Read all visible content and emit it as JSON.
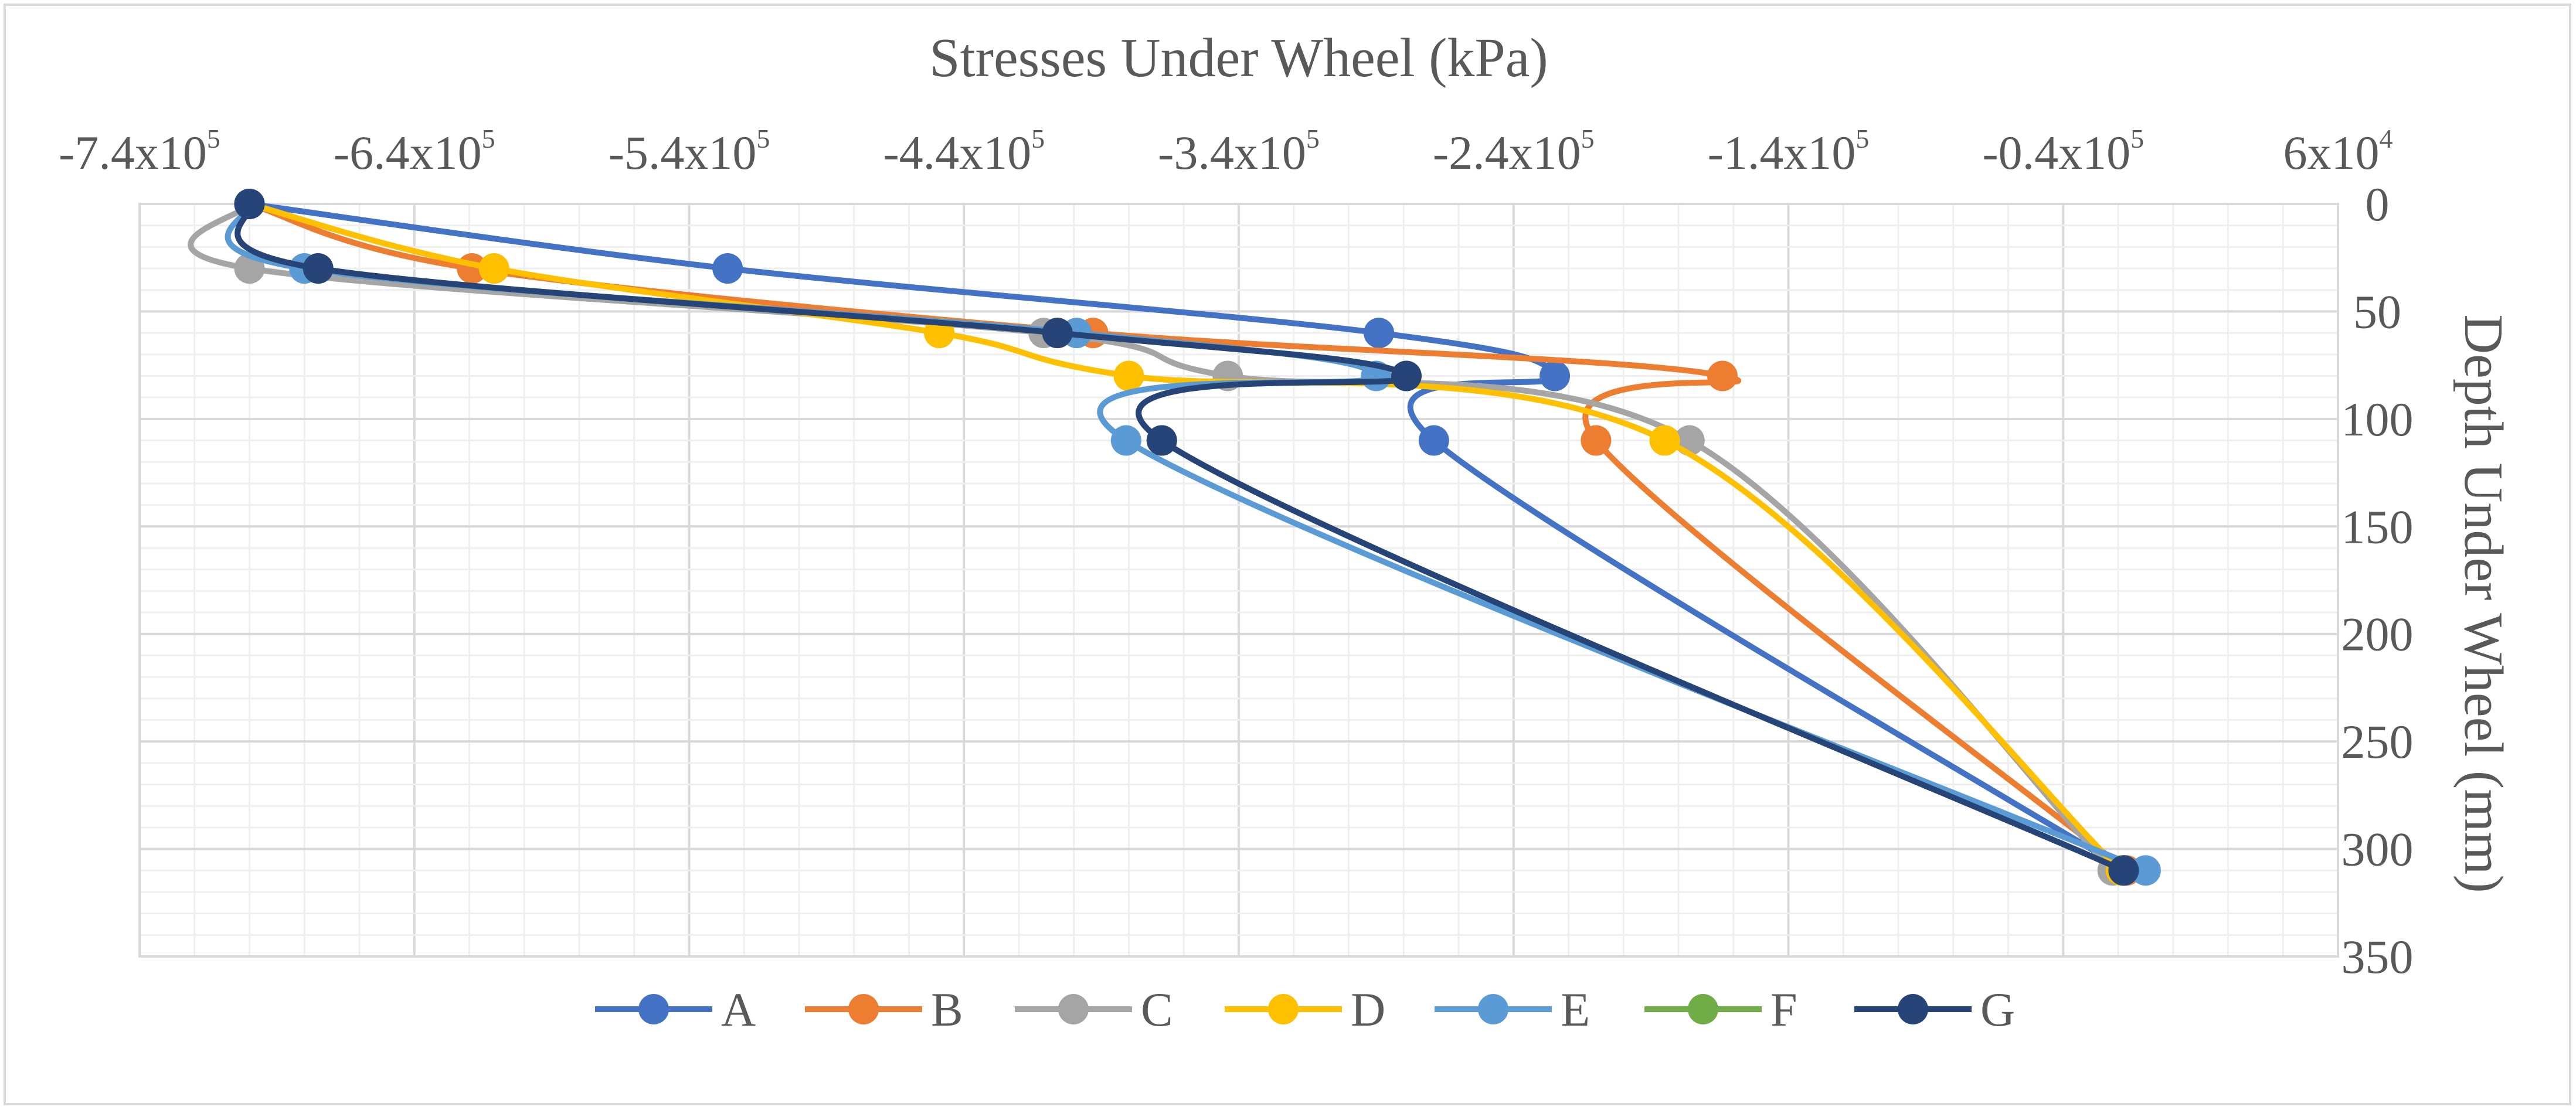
{
  "chart_data": {
    "type": "line",
    "title": "Stresses Under Wheel (kPa)",
    "xlabel": "Stresses Under Wheel (kPa)",
    "ylabel": "Depth Under Wheel (mm)",
    "xlim": [
      -740000,
      60000
    ],
    "ylim": [
      0,
      350
    ],
    "y_inverted": true,
    "x_axis_position": "top",
    "y_axis_position": "right",
    "x_ticks": [
      {
        "value": -740000,
        "base": "-7.4x10",
        "exp": "5"
      },
      {
        "value": -640000,
        "base": "-6.4x10",
        "exp": "5"
      },
      {
        "value": -540000,
        "base": "-5.4x10",
        "exp": "5"
      },
      {
        "value": -440000,
        "base": "-4.4x10",
        "exp": "5"
      },
      {
        "value": -340000,
        "base": "-3.4x10",
        "exp": "5"
      },
      {
        "value": -240000,
        "base": "-2.4x10",
        "exp": "5"
      },
      {
        "value": -140000,
        "base": "-1.4x10",
        "exp": "5"
      },
      {
        "value": -40000,
        "base": "-0.4x10",
        "exp": "5"
      },
      {
        "value": 60000,
        "base": "6x10",
        "exp": "4"
      }
    ],
    "y_ticks": [
      "0",
      "50",
      "100",
      "150",
      "200",
      "250",
      "300",
      "350"
    ],
    "y_tick_values": [
      0,
      50,
      100,
      150,
      200,
      250,
      300,
      350
    ],
    "grid": true,
    "legend_position": "bottom",
    "series": [
      {
        "name": "A",
        "color": "#4472C4",
        "points": [
          [
            -700000,
            0
          ],
          [
            -526000,
            30
          ],
          [
            -289000,
            60
          ],
          [
            -225000,
            80
          ],
          [
            -269000,
            110
          ],
          [
            -17000,
            310
          ]
        ]
      },
      {
        "name": "B",
        "color": "#ED7D31",
        "points": [
          [
            -700000,
            0
          ],
          [
            -619000,
            30
          ],
          [
            -393000,
            60
          ],
          [
            -164000,
            80
          ],
          [
            -210000,
            110
          ],
          [
            -17000,
            310
          ]
        ]
      },
      {
        "name": "C",
        "color": "#A5A5A5",
        "points": [
          [
            -700000,
            0
          ],
          [
            -700000,
            30
          ],
          [
            -411000,
            60
          ],
          [
            -344000,
            80
          ],
          [
            -176000,
            110
          ],
          [
            -22000,
            310
          ]
        ]
      },
      {
        "name": "D",
        "color": "#FFC000",
        "points": [
          [
            -700000,
            0
          ],
          [
            -611000,
            30
          ],
          [
            -449000,
            60
          ],
          [
            -380000,
            80
          ],
          [
            -185000,
            110
          ],
          [
            -19000,
            310
          ]
        ]
      },
      {
        "name": "E",
        "color": "#5B9BD5",
        "points": [
          [
            -700000,
            0
          ],
          [
            -680000,
            30
          ],
          [
            -399000,
            60
          ],
          [
            -290000,
            80
          ],
          [
            -381000,
            110
          ],
          [
            -10000,
            310
          ]
        ]
      },
      {
        "name": "F",
        "color": "#70AD47",
        "points": [
          [
            -700000,
            0
          ],
          [
            -675000,
            30
          ],
          [
            -406000,
            60
          ],
          [
            -279000,
            80
          ],
          [
            -368000,
            110
          ],
          [
            -18000,
            310
          ]
        ]
      },
      {
        "name": "G",
        "color": "#264478",
        "points": [
          [
            -700000,
            0
          ],
          [
            -675000,
            30
          ],
          [
            -406000,
            60
          ],
          [
            -279000,
            80
          ],
          [
            -368000,
            110
          ],
          [
            -18000,
            310
          ]
        ]
      }
    ]
  }
}
